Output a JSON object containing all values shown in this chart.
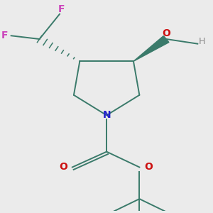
{
  "background_color": "#ebebeb",
  "bond_color": "#3a7a6a",
  "N_color": "#2020cc",
  "O_color": "#cc1010",
  "F_color": "#cc44bb",
  "H_color": "#888888",
  "line_width": 1.4,
  "figsize": [
    3.0,
    3.0
  ],
  "dpi": 100,
  "xlim": [
    -1.3,
    1.4
  ],
  "ylim": [
    -1.6,
    1.5
  ]
}
